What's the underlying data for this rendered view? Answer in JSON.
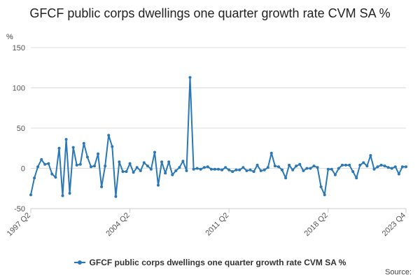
{
  "chart_data": {
    "type": "line",
    "title": "GFCF public corps dwellings one quarter growth rate CVM SA %",
    "ylabel": "%",
    "ylim": [
      -50,
      150
    ],
    "y_ticks": [
      -50,
      0,
      50,
      100,
      150
    ],
    "x_ticks": [
      "1997 Q2",
      "2004 Q2",
      "2011 Q2",
      "2018 Q2",
      "2023 Q4"
    ],
    "x_start": "1997 Q2",
    "x_end": "2023 Q4",
    "grid": true,
    "legend_position": "bottom",
    "series": [
      {
        "name": "GFCF public corps dwellings one quarter growth rate CVM SA %",
        "color": "#2a78b5",
        "values": [
          -33,
          -12,
          2,
          11,
          5,
          6,
          -7,
          -11,
          25,
          -34,
          36,
          -31,
          26,
          4,
          5,
          31,
          14,
          2,
          3,
          18,
          -23,
          3,
          41,
          27,
          -35,
          8,
          -4,
          -4,
          6,
          -5,
          1,
          -3,
          7,
          3,
          -1,
          20,
          -21,
          8,
          -6,
          8,
          -8,
          -3,
          1,
          9,
          -3,
          113,
          -1,
          0,
          -1,
          1,
          2,
          -1,
          -1,
          -1,
          -2,
          1,
          -2,
          -4,
          -2,
          -2,
          1,
          -3,
          -2,
          -4,
          4,
          -3,
          -2,
          1,
          19,
          3,
          2,
          -2,
          -12,
          4,
          -2,
          3,
          5,
          -3,
          0,
          0,
          3,
          1,
          -23,
          -33,
          -1,
          -1,
          -8,
          0,
          4,
          4,
          4,
          -4,
          -12,
          4,
          7,
          3,
          16,
          -1,
          2,
          4,
          3,
          1,
          0,
          2,
          -7,
          2,
          2
        ]
      }
    ]
  },
  "legend": {
    "label": "GFCF public corps dwellings one quarter growth rate CVM SA %"
  },
  "source": {
    "label": "Source:"
  }
}
